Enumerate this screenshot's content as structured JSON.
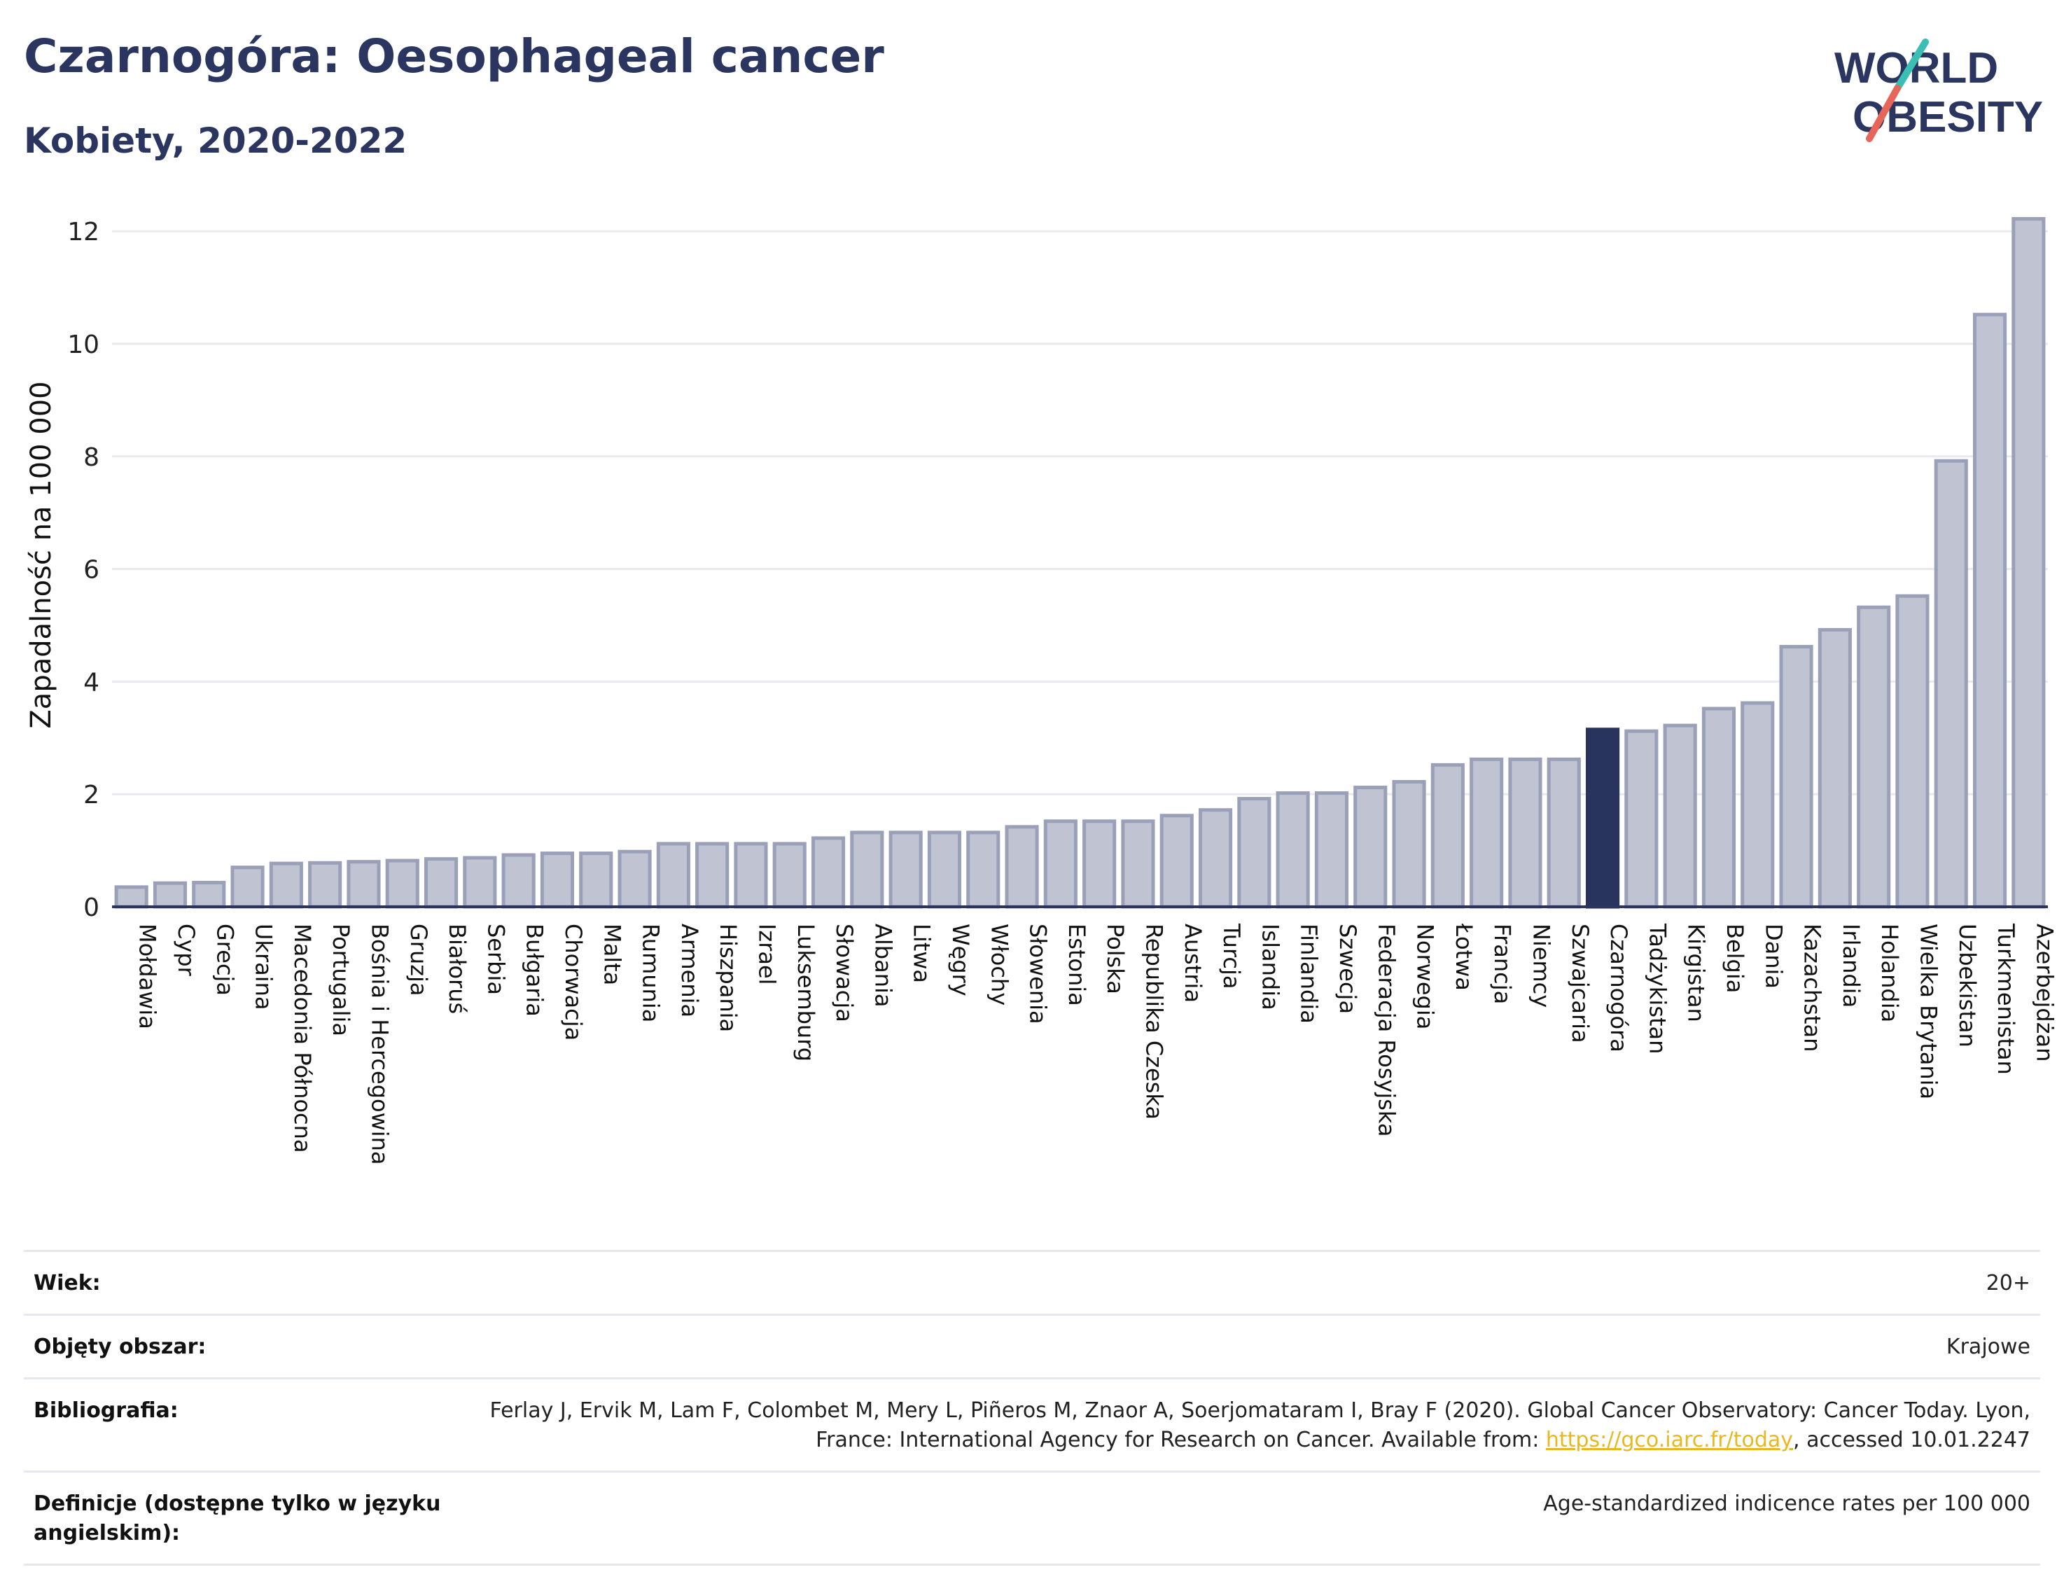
{
  "title": "Czarnogóra: Oesophageal cancer",
  "subtitle": "Kobiety, 2020-2022",
  "logo": {
    "line1": "WORLD",
    "line2": "OBESITY",
    "accent_teal": "#3bbfb5",
    "accent_red": "#e8655a",
    "text_color": "#2a3560"
  },
  "colors": {
    "bar": "#bfc3d2",
    "bar_stroke": "#9aa0b8",
    "highlight": "#28335e",
    "grid": "#e8eaf0",
    "axis": "#2a3560"
  },
  "chart_data": {
    "type": "bar",
    "ylabel": "Zapadalność na 100 000",
    "ylim": [
      0,
      12.5
    ],
    "yticks": [
      0,
      2,
      4,
      6,
      8,
      10,
      12
    ],
    "highlight": "Czarnogóra",
    "categories": [
      "Mołdawia",
      "Cypr",
      "Grecja",
      "Ukraina",
      "Macedonia Północna",
      "Portugalia",
      "Bośnia i Hercegowina",
      "Gruzja",
      "Białoruś",
      "Serbia",
      "Bułgaria",
      "Chorwacja",
      "Malta",
      "Rumunia",
      "Armenia",
      "Hiszpania",
      "Izrael",
      "Luksemburg",
      "Słowacja",
      "Albania",
      "Litwa",
      "Węgry",
      "Włochy",
      "Słowenia",
      "Estonia",
      "Polska",
      "Republika Czeska",
      "Austria",
      "Turcja",
      "Islandia",
      "Finlandia",
      "Szwecja",
      "Federacja Rosyjska",
      "Norwegia",
      "Łotwa",
      "Francja",
      "Niemcy",
      "Szwajcaria",
      "Czarnogóra",
      "Tadżykistan",
      "Kirgistan",
      "Belgia",
      "Dania",
      "Kazachstan",
      "Irlandia",
      "Holandia",
      "Wielka Brytania",
      "Uzbekistan",
      "Turkmenistan",
      "Azerbejdżan"
    ],
    "values": [
      0.35,
      0.42,
      0.43,
      0.7,
      0.77,
      0.78,
      0.8,
      0.82,
      0.85,
      0.87,
      0.92,
      0.95,
      0.95,
      0.98,
      1.12,
      1.12,
      1.12,
      1.12,
      1.22,
      1.32,
      1.32,
      1.32,
      1.32,
      1.42,
      1.52,
      1.52,
      1.52,
      1.62,
      1.72,
      1.92,
      2.02,
      2.02,
      2.12,
      2.22,
      2.52,
      2.62,
      2.62,
      2.62,
      3.15,
      3.12,
      3.22,
      3.52,
      3.62,
      4.62,
      4.92,
      5.32,
      5.52,
      7.92,
      10.52,
      12.22
    ]
  },
  "meta": [
    {
      "label": "Wiek:",
      "value": "20+"
    },
    {
      "label": "Objęty obszar:",
      "value": "Krajowe"
    },
    {
      "label": "Bibliografia:",
      "value_before": "Ferlay J, Ervik M, Lam F, Colombet M, Mery L, Piñeros M, Znaor A, Soerjomataram I, Bray F (2020). Global Cancer Observatory: Cancer Today. Lyon, France: International Agency for Research on Cancer. Available from: ",
      "link": "https://gco.iarc.fr/today",
      "value_after": ", accessed 10.01.2247"
    },
    {
      "label": "Definicje (dostępne tylko w języku angielskim):",
      "value": "Age-standardized indicence rates per 100 000"
    }
  ]
}
